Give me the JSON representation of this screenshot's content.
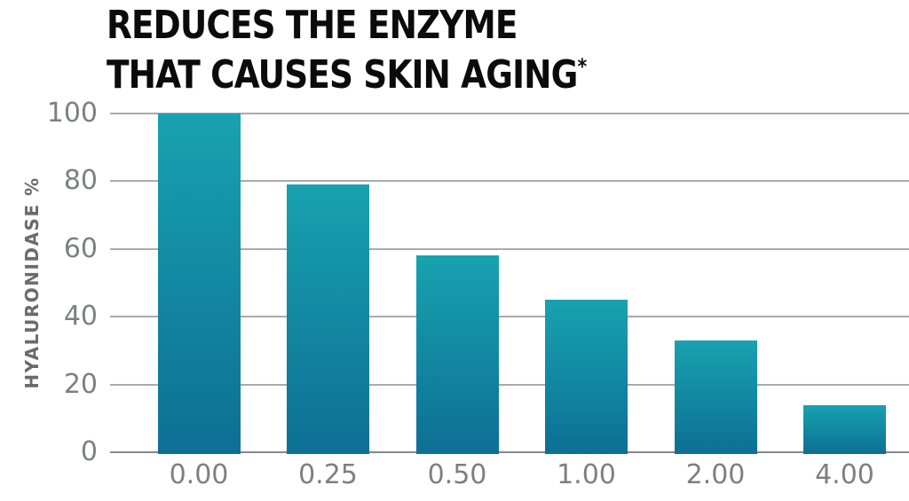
{
  "title": {
    "line1": "REDUCES THE ENZYME",
    "line2": "THAT CAUSES SKIN AGING",
    "asterisk": "*"
  },
  "chart_data": {
    "type": "bar",
    "title": "REDUCES THE ENZYME THAT CAUSES SKIN AGING*",
    "categories": [
      "0.00",
      "0.25",
      "0.50",
      "1.00",
      "2.00",
      "4.00"
    ],
    "values": [
      100,
      79,
      58,
      45,
      33,
      14
    ],
    "xlabel": "",
    "ylabel": "HYALURONIDASE %",
    "ylim": [
      0,
      100
    ],
    "yticks": [
      0,
      20,
      40,
      60,
      80,
      100
    ],
    "grid": true,
    "legend": false,
    "colors": {
      "bar_gradient_top": "#18a2af",
      "bar_gradient_bottom": "#0d6f94",
      "gridline": "#a8aaad",
      "axis_line": "#85878a",
      "tick_label": "#7d7f82",
      "ylabel_color": "#6a6b6e",
      "title_color": "#0b0b0b",
      "background": "#ffffff"
    }
  }
}
